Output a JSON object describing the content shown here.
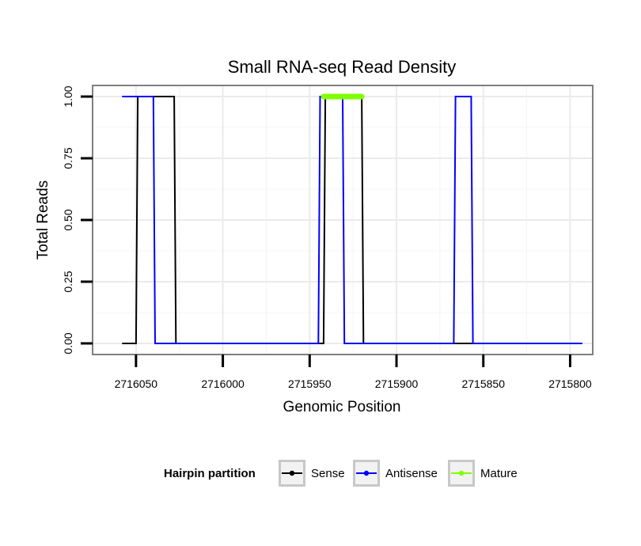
{
  "chart_data": {
    "type": "line",
    "title": "Small RNA-seq Read Density",
    "xlabel": "Genomic Position",
    "ylabel": "Total Reads",
    "xlim": [
      2716075,
      2715787
    ],
    "ylim": [
      -0.045,
      1.045
    ],
    "x_reversed": true,
    "x_ticks": [
      2716050,
      2716000,
      2715950,
      2715900,
      2715850,
      2715800
    ],
    "x_tick_labels": [
      "2716050",
      "2716000",
      "2715950",
      "2715900",
      "2715850",
      "2715800"
    ],
    "y_ticks": [
      0,
      0.25,
      0.5,
      0.75,
      1.0
    ],
    "y_tick_labels": [
      "0.00",
      "0.25",
      "0.50",
      "0.75",
      "1.00"
    ],
    "grid": true,
    "legend": {
      "title": "Hairpin partition",
      "position": "bottom",
      "entries": [
        "Sense",
        "Antisense",
        "Mature"
      ]
    },
    "series": [
      {
        "name": "Sense",
        "color": "#000000",
        "x": [
          2716058,
          2716050,
          2716049,
          2716028,
          2716027,
          2715942,
          2715941,
          2715920,
          2715919,
          2715793
        ],
        "y": [
          0,
          0,
          1,
          1,
          0,
          0,
          1,
          1,
          0,
          0
        ]
      },
      {
        "name": "Antisense",
        "color": "#0000ff",
        "x": [
          2716058,
          2716040,
          2716039,
          2715945,
          2715944,
          2715931,
          2715930,
          2715867,
          2715866,
          2715857,
          2715856,
          2715793
        ],
        "y": [
          1,
          1,
          0,
          0,
          1,
          1,
          0,
          0,
          1,
          1,
          0,
          0
        ]
      },
      {
        "name": "Mature",
        "color": "#7fff00",
        "x": [
          2715942,
          2715920
        ],
        "y": [
          1,
          1
        ]
      }
    ]
  }
}
